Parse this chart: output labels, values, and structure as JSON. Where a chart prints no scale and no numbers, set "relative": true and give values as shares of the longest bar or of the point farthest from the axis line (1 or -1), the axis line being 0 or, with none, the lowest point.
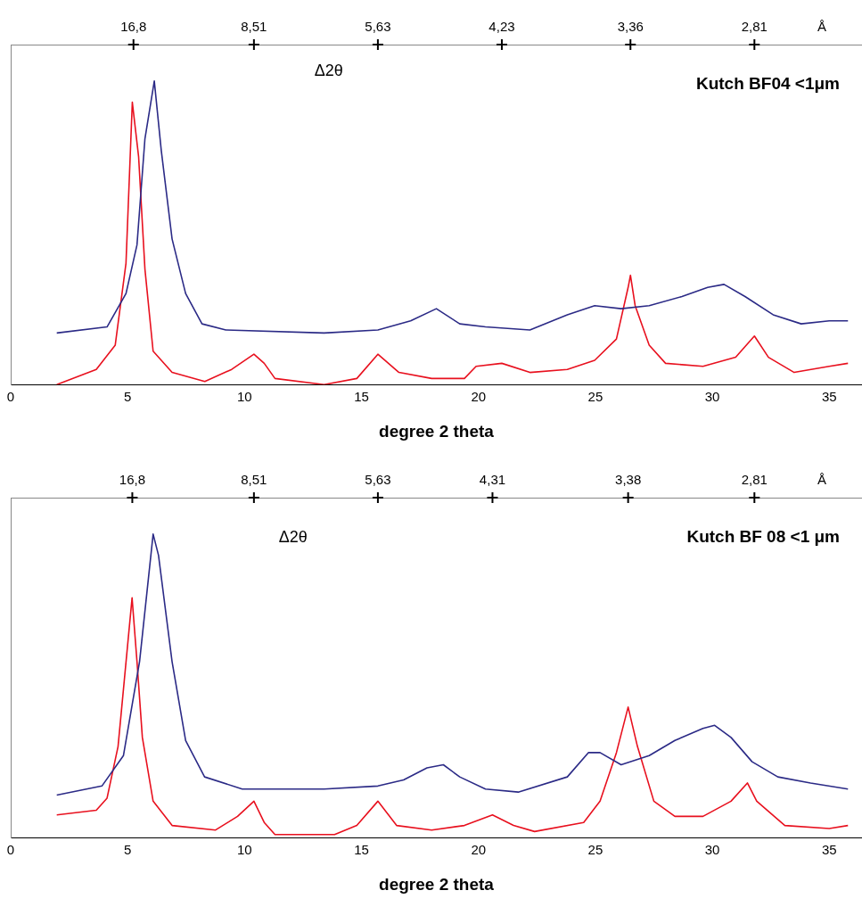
{
  "chart_data": [
    {
      "type": "line",
      "title": "Kutch BF04 <1μm",
      "xlabel": "degree 2 theta",
      "relative": true,
      "legend": false,
      "marker": "none",
      "grid": false,
      "annotations": [
        "Δ2θ",
        "Å",
        {
          "text": "16,8",
          "x": 5.25
        },
        {
          "text": "8,51",
          "x": 10.4
        },
        {
          "text": "5,63",
          "x": 15.7
        },
        {
          "text": "4,23",
          "x": 21.0
        },
        {
          "text": "3,36",
          "x": 26.5
        },
        {
          "text": "2,81",
          "x": 31.8
        }
      ],
      "xlim": [
        0,
        36.4
      ],
      "xticks": [
        0,
        5,
        10,
        15,
        20,
        25,
        30,
        35
      ],
      "series": [
        {
          "color": "#2b2a86",
          "x": [
            1.97,
            4.12,
            4.93,
            5.4,
            5.74,
            6.14,
            6.44,
            6.9,
            7.48,
            8.18,
            9.2,
            13.4,
            15.7,
            17.1,
            18.2,
            19.2,
            20.3,
            22.2,
            23.8,
            24.97,
            26.1,
            27.3,
            28.7,
            29.8,
            30.5,
            31.4,
            32.6,
            33.8,
            35.0,
            35.8
          ],
          "values": [
            0.17,
            0.19,
            0.3,
            0.46,
            0.81,
            1.0,
            0.77,
            0.48,
            0.3,
            0.2,
            0.18,
            0.17,
            0.18,
            0.21,
            0.25,
            0.2,
            0.19,
            0.18,
            0.23,
            0.26,
            0.25,
            0.26,
            0.29,
            0.32,
            0.33,
            0.29,
            0.23,
            0.2,
            0.21,
            0.21
          ]
        },
        {
          "color": "#e8101e",
          "x": [
            1.97,
            3.66,
            4.47,
            4.93,
            5.2,
            5.47,
            5.74,
            6.09,
            6.9,
            8.3,
            9.45,
            10.4,
            10.84,
            11.3,
            13.4,
            14.8,
            15.7,
            16.6,
            18.0,
            19.4,
            19.9,
            21.0,
            22.2,
            23.8,
            24.97,
            25.9,
            26.4,
            26.5,
            26.7,
            27.3,
            28.0,
            29.6,
            31.0,
            31.8,
            32.4,
            33.5,
            35.0,
            35.8
          ],
          "values": [
            0,
            0.05,
            0.13,
            0.4,
            0.93,
            0.75,
            0.38,
            0.11,
            0.04,
            0.01,
            0.05,
            0.1,
            0.07,
            0.02,
            0,
            0.02,
            0.1,
            0.04,
            0.02,
            0.02,
            0.06,
            0.07,
            0.04,
            0.05,
            0.08,
            0.15,
            0.32,
            0.36,
            0.26,
            0.13,
            0.07,
            0.06,
            0.09,
            0.16,
            0.09,
            0.04,
            0.06,
            0.07
          ]
        }
      ]
    },
    {
      "type": "line",
      "title": "Kutch BF 08 <1 μm",
      "xlabel": "degree 2 theta",
      "relative": true,
      "legend": false,
      "marker": "none",
      "grid": false,
      "annotations": [
        "Δ2θ",
        "Å",
        {
          "text": "16,8",
          "x": 5.2
        },
        {
          "text": "8,51",
          "x": 10.4
        },
        {
          "text": "5,63",
          "x": 15.7
        },
        {
          "text": "4,31",
          "x": 20.6
        },
        {
          "text": "3,38",
          "x": 26.4
        },
        {
          "text": "2,81",
          "x": 31.8
        }
      ],
      "xlim": [
        0,
        36.4
      ],
      "xticks": [
        0,
        5,
        10,
        15,
        20,
        25,
        30,
        35
      ],
      "series": [
        {
          "color": "#2b2a86",
          "x": [
            1.97,
            3.9,
            4.82,
            5.51,
            6.09,
            6.32,
            6.9,
            7.48,
            8.29,
            9.9,
            13.4,
            15.7,
            16.8,
            17.8,
            18.5,
            19.2,
            20.3,
            21.7,
            23.8,
            24.7,
            25.2,
            26.1,
            27.3,
            28.4,
            29.6,
            30.1,
            30.8,
            31.7,
            32.8,
            34.2,
            35.8
          ],
          "values": [
            0.14,
            0.17,
            0.27,
            0.58,
            1.0,
            0.93,
            0.58,
            0.32,
            0.2,
            0.16,
            0.16,
            0.17,
            0.19,
            0.23,
            0.24,
            0.2,
            0.16,
            0.15,
            0.2,
            0.28,
            0.28,
            0.24,
            0.27,
            0.32,
            0.36,
            0.37,
            0.33,
            0.25,
            0.2,
            0.18,
            0.16
          ]
        },
        {
          "color": "#e8101e",
          "x": [
            1.97,
            3.66,
            4.12,
            4.59,
            5.19,
            5.4,
            5.63,
            6.09,
            6.9,
            8.76,
            9.7,
            10.4,
            10.84,
            11.3,
            13.85,
            14.8,
            15.7,
            16.5,
            18.0,
            19.4,
            20.6,
            21.5,
            22.4,
            24.5,
            25.2,
            25.9,
            26.4,
            26.8,
            27.5,
            28.4,
            29.6,
            30.8,
            31.5,
            31.9,
            33.1,
            35.0,
            35.8
          ],
          "values": [
            0.075,
            0.09,
            0.13,
            0.3,
            0.79,
            0.58,
            0.33,
            0.12,
            0.04,
            0.025,
            0.07,
            0.12,
            0.05,
            0.01,
            0.01,
            0.04,
            0.12,
            0.04,
            0.025,
            0.04,
            0.075,
            0.04,
            0.02,
            0.05,
            0.12,
            0.28,
            0.43,
            0.3,
            0.12,
            0.07,
            0.07,
            0.12,
            0.18,
            0.12,
            0.04,
            0.03,
            0.04
          ]
        }
      ]
    }
  ]
}
